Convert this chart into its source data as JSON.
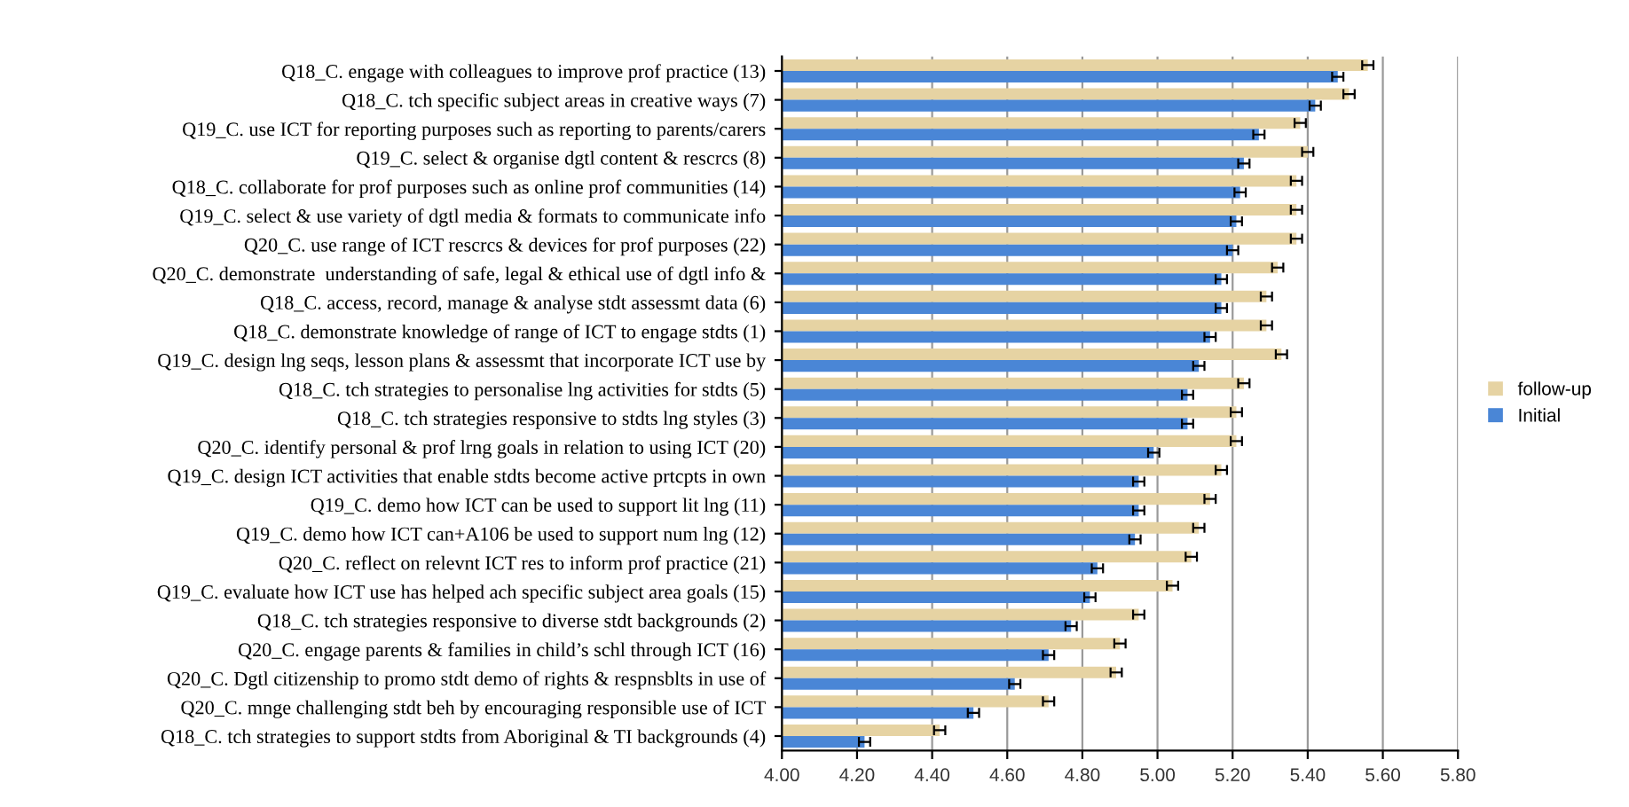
{
  "chart_data": {
    "type": "bar",
    "orientation": "horizontal",
    "categories": [
      "Q18_C. engage with colleagues to improve prof practice (13)",
      "Q18_C. tch specific subject areas in creative ways (7)",
      "Q19_C. use ICT for reporting purposes such as reporting to parents/carers",
      "Q19_C. select & organise dgtl content & rescrcs (8)",
      "Q18_C. collaborate for prof purposes such as online prof communities (14)",
      "Q19_C. select & use variety of dgtl media & formats to communicate info",
      "Q20_C. use range of ICT rescrcs & devices for prof purposes (22)",
      "Q20_C. demonstrate  understanding of safe, legal & ethical use of dgtl info &",
      "Q18_C. access, record, manage & analyse stdt assessmt data (6)",
      "Q18_C. demonstrate knowledge of range of ICT to engage stdts (1)",
      "Q19_C. design lng seqs, lesson plans & assessmt that incorporate ICT use by",
      "Q18_C. tch strategies to personalise lng activities for stdts (5)",
      "Q18_C. tch strategies responsive to stdts lng styles (3)",
      "Q20_C. identify personal & prof lrng goals in relation to using ICT (20)",
      "Q19_C. design ICT activities that enable stdts become active prtcpts in own",
      "Q19_C. demo how ICT can be used to support lit lng (11)",
      "Q19_C. demo how ICT can+A106 be used to support num lng (12)",
      "Q20_C. reflect on relevnt ICT res to inform prof practice (21)",
      "Q19_C. evaluate how ICT use has helped ach specific subject area goals (15)",
      "Q18_C. tch strategies responsive to diverse stdt backgrounds (2)",
      "Q20_C. engage parents & families in child’s schl through ICT (16)",
      "Q20_C. Dgtl citizenship to promo stdt demo of rights & respnsblts in use of",
      "Q20_C. mnge challenging stdt beh by encouraging responsible use of ICT",
      "Q18_C. tch strategies to support stdts from Aboriginal & TI backgrounds (4)"
    ],
    "series": [
      {
        "name": "follow-up",
        "color": "#e6d3a3",
        "values": [
          5.56,
          5.51,
          5.38,
          5.4,
          5.37,
          5.37,
          5.37,
          5.32,
          5.29,
          5.29,
          5.33,
          5.23,
          5.21,
          5.21,
          5.17,
          5.14,
          5.11,
          5.09,
          5.04,
          4.95,
          4.9,
          4.89,
          4.71,
          4.42
        ],
        "errors": [
          0.015,
          0.015,
          0.015,
          0.015,
          0.015,
          0.015,
          0.015,
          0.015,
          0.015,
          0.015,
          0.015,
          0.015,
          0.015,
          0.015,
          0.015,
          0.015,
          0.015,
          0.015,
          0.015,
          0.015,
          0.015,
          0.015,
          0.015,
          0.015
        ]
      },
      {
        "name": "Initial",
        "color": "#4a86d6",
        "values": [
          5.48,
          5.42,
          5.27,
          5.23,
          5.22,
          5.21,
          5.2,
          5.17,
          5.17,
          5.14,
          5.11,
          5.08,
          5.08,
          4.99,
          4.95,
          4.95,
          4.94,
          4.84,
          4.82,
          4.77,
          4.71,
          4.62,
          4.51,
          4.22
        ],
        "errors": [
          0.015,
          0.015,
          0.015,
          0.015,
          0.015,
          0.015,
          0.015,
          0.015,
          0.015,
          0.015,
          0.015,
          0.015,
          0.015,
          0.015,
          0.015,
          0.015,
          0.015,
          0.015,
          0.015,
          0.015,
          0.015,
          0.015,
          0.015,
          0.015
        ]
      }
    ],
    "xlim": [
      4.0,
      5.8
    ],
    "xticks": [
      {
        "value": 4.0,
        "label": "4.00"
      },
      {
        "value": 4.2,
        "label": "4.20"
      },
      {
        "value": 4.4,
        "label": "4.40"
      },
      {
        "value": 4.6,
        "label": "4.60"
      },
      {
        "value": 4.8,
        "label": "4.80"
      },
      {
        "value": 5.0,
        "label": "5.00"
      },
      {
        "value": 5.2,
        "label": "5.20"
      },
      {
        "value": 5.4,
        "label": "5.40"
      },
      {
        "value": 5.6,
        "label": "5.60"
      },
      {
        "value": 5.8,
        "label": "5.80"
      }
    ],
    "grid": "x",
    "legend": "right"
  }
}
